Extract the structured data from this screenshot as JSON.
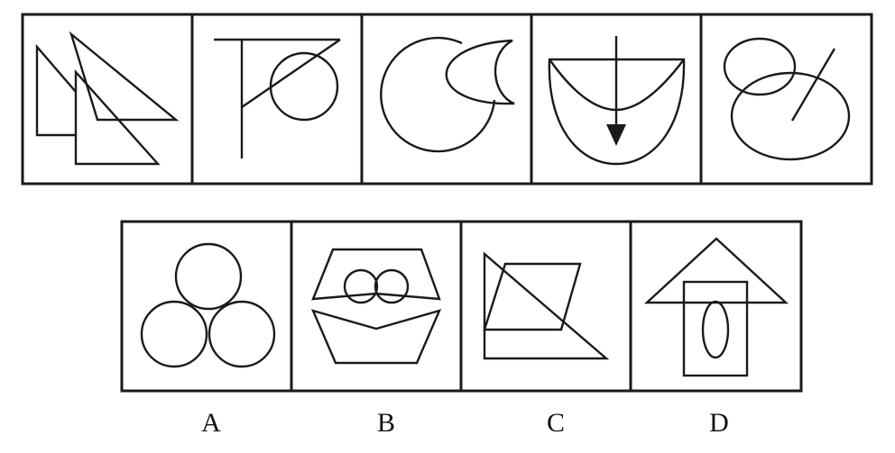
{
  "puzzle": {
    "question_row": {
      "panels": [
        {
          "id": "q1",
          "shape": "overlapping-triangles"
        },
        {
          "id": "q2",
          "shape": "line-triangle-circle"
        },
        {
          "id": "q3",
          "shape": "circle-crescent"
        },
        {
          "id": "q4",
          "shape": "bowl-arrow"
        },
        {
          "id": "q5",
          "shape": "ellipses-slash"
        }
      ]
    },
    "options": [
      {
        "label": "A",
        "shape": "three-circles"
      },
      {
        "label": "B",
        "shape": "hexagon-halves-two-circles"
      },
      {
        "label": "C",
        "shape": "triangle-parallelogram"
      },
      {
        "label": "D",
        "shape": "house-arrow-oval"
      }
    ],
    "colors": {
      "stroke": "#1a1a1a",
      "background": "#ffffff"
    }
  }
}
